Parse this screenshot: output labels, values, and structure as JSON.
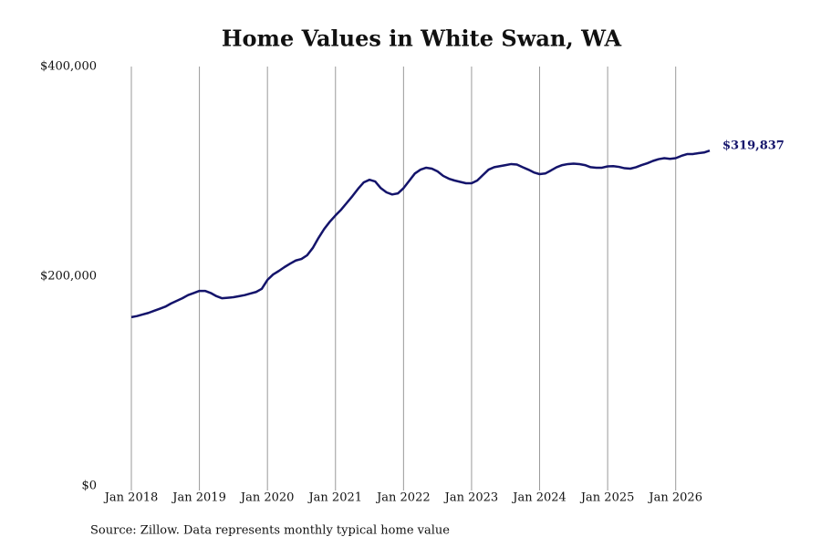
{
  "chart_data": {
    "type": "line",
    "title": "Home Values in White Swan, WA",
    "source": "Source: Zillow. Data represents monthly typical home value",
    "color": "#14146b",
    "grid": true,
    "x": [
      "2018-01",
      "2018-02",
      "2018-03",
      "2018-04",
      "2018-05",
      "2018-06",
      "2018-07",
      "2018-08",
      "2018-09",
      "2018-10",
      "2018-11",
      "2018-12",
      "2019-01",
      "2019-02",
      "2019-03",
      "2019-04",
      "2019-05",
      "2019-06",
      "2019-07",
      "2019-08",
      "2019-09",
      "2019-10",
      "2019-11",
      "2019-12",
      "2020-01",
      "2020-02",
      "2020-03",
      "2020-04",
      "2020-05",
      "2020-06",
      "2020-07",
      "2020-08",
      "2020-09",
      "2020-10",
      "2020-11",
      "2020-12",
      "2021-01",
      "2021-02",
      "2021-03",
      "2021-04",
      "2021-05",
      "2021-06",
      "2021-07",
      "2021-08",
      "2021-09",
      "2021-10",
      "2021-11",
      "2021-12",
      "2022-01",
      "2022-02",
      "2022-03",
      "2022-04",
      "2022-05",
      "2022-06",
      "2022-07",
      "2022-08",
      "2022-09",
      "2022-10",
      "2022-11",
      "2022-12",
      "2023-01",
      "2023-02",
      "2023-03",
      "2023-04",
      "2023-05",
      "2023-06",
      "2023-07",
      "2023-08",
      "2023-09",
      "2023-10",
      "2023-11",
      "2023-12",
      "2024-01",
      "2024-02",
      "2024-03",
      "2024-04",
      "2024-05",
      "2024-06",
      "2024-07",
      "2024-08",
      "2024-09",
      "2024-10",
      "2024-11",
      "2024-12",
      "2025-01",
      "2025-02",
      "2025-03",
      "2025-04",
      "2025-05",
      "2025-06",
      "2025-07",
      "2025-08",
      "2025-09",
      "2025-10",
      "2025-11",
      "2025-12",
      "2026-01",
      "2026-02",
      "2026-03",
      "2026-04",
      "2026-05",
      "2026-06",
      "2026-07"
    ],
    "values": [
      161000,
      162000,
      163500,
      165000,
      167000,
      169000,
      171000,
      174000,
      176500,
      179000,
      182000,
      184000,
      186000,
      186000,
      184000,
      181000,
      179000,
      179500,
      180000,
      181000,
      182000,
      183500,
      185000,
      188000,
      196500,
      201700,
      205000,
      208700,
      212000,
      215000,
      216500,
      220000,
      227000,
      236500,
      245000,
      252000,
      258000,
      263500,
      270000,
      276500,
      283500,
      289600,
      292000,
      290400,
      284000,
      280000,
      278000,
      279000,
      284000,
      291000,
      298000,
      301700,
      303500,
      302600,
      300000,
      295700,
      293000,
      291300,
      290000,
      288700,
      288700,
      291300,
      296500,
      301700,
      304000,
      305000,
      306000,
      307000,
      306500,
      304000,
      301700,
      299000,
      297400,
      298000,
      300900,
      304000,
      306000,
      307000,
      307400,
      307000,
      306000,
      304000,
      303500,
      303500,
      304800,
      305000,
      304300,
      303000,
      302600,
      304000,
      306000,
      307800,
      310000,
      311700,
      312600,
      312000,
      312600,
      314800,
      316500,
      316500,
      317400,
      318000,
      319837
    ],
    "value_labels": [
      null,
      null,
      null,
      null,
      null,
      null,
      null,
      null,
      null,
      null,
      null,
      null,
      null,
      null,
      null,
      null,
      null,
      null,
      null,
      null,
      null,
      null,
      null,
      null,
      null,
      null,
      null,
      null,
      null,
      null,
      null,
      null,
      null,
      null,
      null,
      null,
      null,
      null,
      null,
      null,
      null,
      null,
      null,
      null,
      null,
      null,
      null,
      null,
      null,
      null,
      null,
      null,
      null,
      null,
      null,
      null,
      null,
      null,
      null,
      null,
      null,
      null,
      null,
      null,
      null,
      null,
      null,
      null,
      null,
      null,
      null,
      null,
      null,
      null,
      null,
      null,
      null,
      null,
      null,
      null,
      null,
      null,
      null,
      null,
      null,
      null,
      null,
      null,
      null,
      null,
      null,
      null,
      null,
      null,
      null,
      null,
      null,
      null,
      null,
      null,
      null,
      null,
      "$319,837"
    ],
    "xlim": [
      "2018-01",
      "2026-07"
    ],
    "xticks": [
      {
        "value": "2018-01",
        "label": "Jan 2018"
      },
      {
        "value": "2019-01",
        "label": "Jan 2019"
      },
      {
        "value": "2020-01",
        "label": "Jan 2020"
      },
      {
        "value": "2021-01",
        "label": "Jan 2021"
      },
      {
        "value": "2022-01",
        "label": "Jan 2022"
      },
      {
        "value": "2023-01",
        "label": "Jan 2023"
      },
      {
        "value": "2024-01",
        "label": "Jan 2024"
      },
      {
        "value": "2025-01",
        "label": "Jan 2025"
      },
      {
        "value": "2026-01",
        "label": "Jan 2026"
      }
    ],
    "ylim": [
      0,
      400000
    ],
    "yticks": [
      {
        "value": 0,
        "label": "$0"
      },
      {
        "value": 200000,
        "label": "$200,000"
      },
      {
        "value": 400000,
        "label": "$400,000"
      }
    ]
  }
}
